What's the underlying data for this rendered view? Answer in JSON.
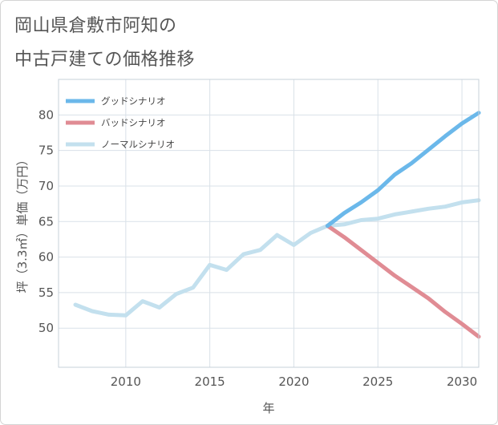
{
  "title_lines": [
    "岡山県倉敷市阿知の",
    "中古戸建ての価格推移"
  ],
  "chart_data": {
    "type": "line",
    "xlabel": "年",
    "ylabel": "坪（3.3㎡）単価（万円）",
    "xlim": [
      2006,
      2031
    ],
    "ylim": [
      44.5,
      85
    ],
    "x_ticks": [
      2010,
      2015,
      2020,
      2025,
      2030
    ],
    "y_ticks": [
      50,
      55,
      60,
      65,
      70,
      75,
      80
    ],
    "grid": true,
    "legend_position": "top-left",
    "series": [
      {
        "name": "グッドシナリオ",
        "color": "#6bb8ea",
        "x": [
          2022,
          2023,
          2024,
          2025,
          2026,
          2027,
          2028,
          2029,
          2030,
          2031
        ],
        "y": [
          64.4,
          66.2,
          67.7,
          69.4,
          71.6,
          73.2,
          75.1,
          77.0,
          78.8,
          80.3
        ]
      },
      {
        "name": "バッドシナリオ",
        "color": "#e08c94",
        "x": [
          2022,
          2023,
          2024,
          2025,
          2026,
          2027,
          2028,
          2029,
          2030,
          2031
        ],
        "y": [
          64.4,
          62.8,
          61.0,
          59.2,
          57.4,
          55.8,
          54.2,
          52.3,
          50.6,
          48.8
        ]
      },
      {
        "name": "ノーマルシナリオ",
        "color": "#c3e0ee",
        "x": [
          2007,
          2008,
          2009,
          2010,
          2011,
          2012,
          2013,
          2014,
          2015,
          2016,
          2017,
          2018,
          2019,
          2020,
          2021,
          2022,
          2023,
          2024,
          2025,
          2026,
          2027,
          2028,
          2029,
          2030,
          2031
        ],
        "y": [
          53.3,
          52.4,
          51.9,
          51.8,
          53.8,
          52.9,
          54.8,
          55.7,
          58.9,
          58.2,
          60.4,
          61.0,
          63.1,
          61.7,
          63.4,
          64.4,
          64.6,
          65.2,
          65.4,
          66.0,
          66.4,
          66.8,
          67.1,
          67.7,
          68.0
        ]
      }
    ]
  }
}
